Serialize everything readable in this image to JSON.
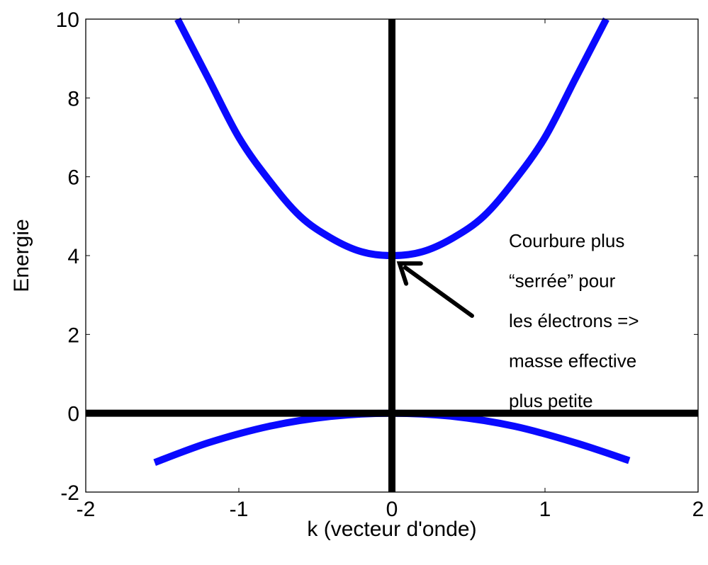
{
  "chart_data": {
    "type": "line",
    "xlabel": "k (vecteur d'onde)",
    "ylabel": "Energie",
    "xlim": [
      -2,
      2
    ],
    "ylim": [
      -2,
      10
    ],
    "xticks": [
      "-2",
      "-1",
      "0",
      "1",
      "2"
    ],
    "yticks": [
      "-2",
      "0",
      "2",
      "4",
      "6",
      "8",
      "10"
    ],
    "grid": false,
    "series": [
      {
        "color": "#0a0aff",
        "x": [
          -1.4,
          -1.2,
          -1.0,
          -0.8,
          -0.6,
          -0.4,
          -0.2,
          0.0,
          0.2,
          0.4,
          0.6,
          0.8,
          1.0,
          1.2,
          1.4
        ],
        "y": [
          10.0,
          8.5,
          7.0,
          5.9,
          5.0,
          4.45,
          4.1,
          4.0,
          4.1,
          4.45,
          5.0,
          5.9,
          7.0,
          8.5,
          10.0
        ]
      },
      {
        "color": "#0a0aff",
        "x": [
          -1.55,
          -1.2,
          -0.8,
          -0.4,
          0.0,
          0.4,
          0.8,
          1.2,
          1.55
        ],
        "y": [
          -1.25,
          -0.75,
          -0.33,
          -0.08,
          0.0,
          -0.08,
          -0.33,
          -0.75,
          -1.2
        ]
      }
    ],
    "reference_lines": {
      "horizontal_y": 0,
      "vertical_x": 0,
      "color": "#000000"
    },
    "annotation": {
      "lines": [
        "Courbure plus",
        "“serrée” pour",
        "les électrons =>",
        "masse effective",
        "plus petite"
      ],
      "arrow_target": [
        0.05,
        3.8
      ]
    }
  }
}
